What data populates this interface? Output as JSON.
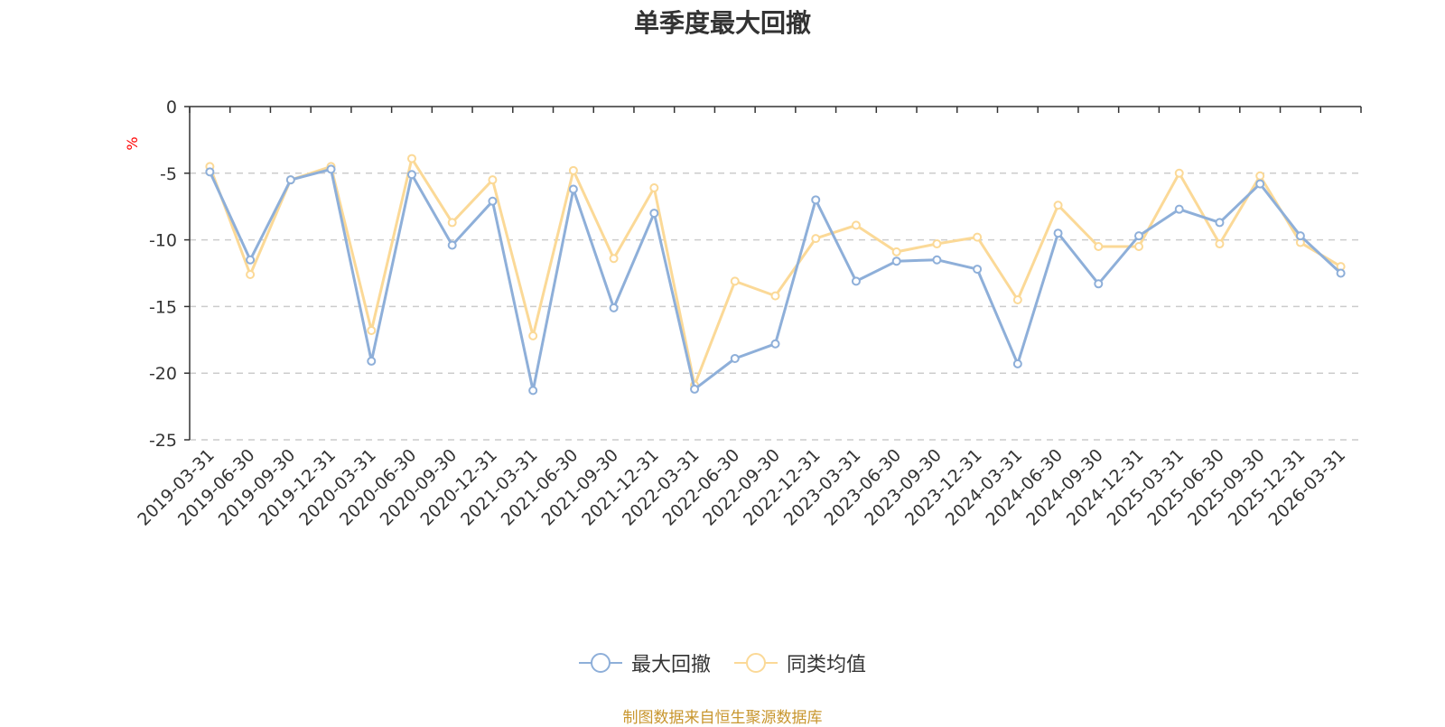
{
  "chart_data": {
    "type": "line",
    "title": "单季度最大回撤",
    "ylabel": "%",
    "ylim": [
      -25,
      0
    ],
    "yticks": [
      0,
      -5,
      -10,
      -15,
      -20,
      -25
    ],
    "grid": true,
    "legend_position": "bottom-center",
    "x": [
      "2019-03-31",
      "2019-06-30",
      "2019-09-30",
      "2019-12-31",
      "2020-03-31",
      "2020-06-30",
      "2020-09-30",
      "2020-12-31",
      "2021-03-31",
      "2021-06-30",
      "2021-09-30",
      "2021-12-31",
      "2022-03-31",
      "2022-06-30",
      "2022-09-30",
      "2022-12-31",
      "2023-03-31",
      "2023-06-30",
      "2023-09-30",
      "2023-12-31",
      "2024-03-31",
      "2024-06-30",
      "2024-09-30",
      "2024-12-31",
      "2025-03-31",
      "2025-06-30",
      "2025-09-30",
      "2025-12-31",
      "2026-03-31"
    ],
    "series": [
      {
        "name": "最大回撤",
        "color": "#8eafd9",
        "values": [
          -4.9,
          -11.5,
          -5.5,
          -4.7,
          -19.1,
          -5.1,
          -10.4,
          -7.1,
          -21.3,
          -6.2,
          -15.1,
          -8.0,
          -21.2,
          -18.9,
          -17.8,
          -7.0,
          -13.1,
          -11.6,
          -11.5,
          -12.2,
          -19.3,
          -9.5,
          -13.3,
          -9.7,
          -7.7,
          -8.7,
          -5.8,
          -9.7,
          -12.5
        ]
      },
      {
        "name": "同类均值",
        "color": "#fbd997",
        "values": [
          -4.5,
          -12.6,
          -5.5,
          -4.5,
          -16.8,
          -3.9,
          -8.7,
          -5.5,
          -17.2,
          -4.8,
          -11.4,
          -6.1,
          -20.9,
          -13.1,
          -14.2,
          -9.9,
          -8.9,
          -10.9,
          -10.3,
          -9.8,
          -14.5,
          -7.4,
          -10.5,
          -10.5,
          -5.0,
          -10.3,
          -5.2,
          -10.2,
          -12.0
        ]
      }
    ]
  },
  "source_note": "制图数据来自恒生聚源数据库"
}
